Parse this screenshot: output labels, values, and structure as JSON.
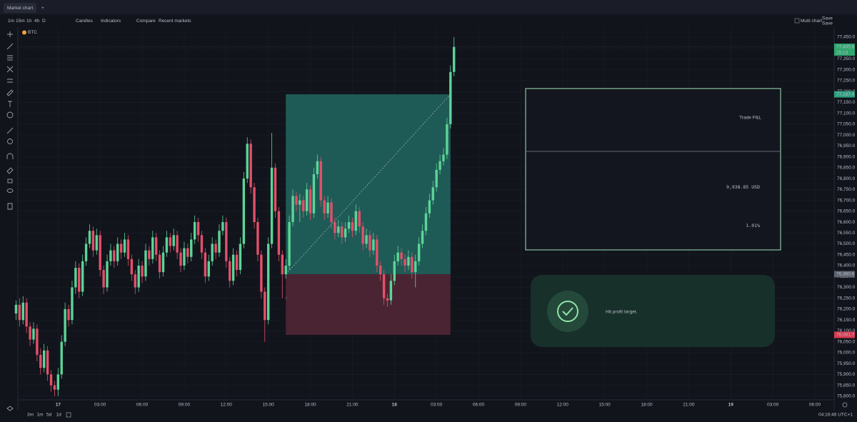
{
  "toolbar": {
    "tab": "Market chart",
    "intervals": [
      "1m",
      "15m",
      "1h",
      "4h",
      "D"
    ],
    "chart_style": "Candles",
    "indicators": "Indicators",
    "compare": "Compare",
    "recent": "Recent markets",
    "multi_chart": "Multi chart",
    "save_top": "Save",
    "save_bottom": "Save",
    "symbol": "BTC"
  },
  "chart_data": {
    "type": "candlestick",
    "grid": true,
    "up_color": "#5cd497",
    "down_color": "#e2506a",
    "xlim": [
      -0.5,
      233.5
    ],
    "ylim": [
      75783,
      77496
    ],
    "xticks": [
      {
        "value": 12,
        "label": "17"
      },
      {
        "value": 24,
        "label": "03:00"
      },
      {
        "value": 36,
        "label": "06:00"
      },
      {
        "value": 48,
        "label": "09:00"
      },
      {
        "value": 60,
        "label": "12:00"
      },
      {
        "value": 72,
        "label": "15:00"
      },
      {
        "value": 84,
        "label": "18:00"
      },
      {
        "value": 96,
        "label": "21:00"
      },
      {
        "value": 108,
        "label": "18"
      },
      {
        "value": 120,
        "label": "03:00"
      },
      {
        "value": 132,
        "label": "06:00"
      },
      {
        "value": 144,
        "label": "09:00"
      },
      {
        "value": 156,
        "label": "12:00"
      },
      {
        "value": 168,
        "label": "15:00"
      },
      {
        "value": 180,
        "label": "18:00"
      },
      {
        "value": 192,
        "label": "21:00"
      },
      {
        "value": 204,
        "label": "19"
      },
      {
        "value": 216,
        "label": "03:00"
      },
      {
        "value": 228,
        "label": "06:00"
      }
    ],
    "yticks": [
      {
        "value": 75800,
        "label": "75,800.0"
      },
      {
        "value": 75850,
        "label": "75,850.0"
      },
      {
        "value": 75900,
        "label": "75,900.0"
      },
      {
        "value": 75950,
        "label": "75,950.0"
      },
      {
        "value": 76000,
        "label": "76,000.0"
      },
      {
        "value": 76050,
        "label": "76,050.0"
      },
      {
        "value": 76100,
        "label": "76,100.0"
      },
      {
        "value": 76150,
        "label": "76,150.0"
      },
      {
        "value": 76200,
        "label": "76,200.0"
      },
      {
        "value": 76250,
        "label": "76,250.0"
      },
      {
        "value": 76300,
        "label": "76,300.0"
      },
      {
        "value": 76350,
        "label": "76,350.0"
      },
      {
        "value": 76400,
        "label": "76,400.0"
      },
      {
        "value": 76450,
        "label": "76,450.0"
      },
      {
        "value": 76500,
        "label": "76,500.0"
      },
      {
        "value": 76550,
        "label": "76,550.0"
      },
      {
        "value": 76600,
        "label": "76,600.0"
      },
      {
        "value": 76650,
        "label": "76,650.0"
      },
      {
        "value": 76700,
        "label": "76,700.0"
      },
      {
        "value": 76750,
        "label": "76,750.0"
      },
      {
        "value": 76800,
        "label": "76,800.0"
      },
      {
        "value": 76850,
        "label": "76,850.0"
      },
      {
        "value": 76900,
        "label": "76,900.0"
      },
      {
        "value": 76950,
        "label": "76,950.0"
      },
      {
        "value": 77000,
        "label": "77,000.0"
      },
      {
        "value": 77050,
        "label": "77,050.0"
      },
      {
        "value": 77100,
        "label": "77,100.0"
      },
      {
        "value": 77150,
        "label": "77,150.0"
      },
      {
        "value": 77200,
        "label": "77,200.0"
      },
      {
        "value": 77250,
        "label": "77,250.0"
      },
      {
        "value": 77300,
        "label": "77,300.0"
      },
      {
        "value": 77350,
        "label": "77,350.0"
      },
      {
        "value": 77400,
        "label": "77,400.0"
      },
      {
        "value": 77450,
        "label": "77,450.0"
      }
    ],
    "candles": [
      [
        76180,
        76240,
        76150,
        76220
      ],
      [
        76220,
        76250,
        76120,
        76150
      ],
      [
        76150,
        76260,
        76130,
        76230
      ],
      [
        76230,
        76250,
        76090,
        76120
      ],
      [
        76120,
        76140,
        76030,
        76060
      ],
      [
        76060,
        76140,
        76040,
        76110
      ],
      [
        76110,
        76130,
        75960,
        75990
      ],
      [
        75990,
        76020,
        75900,
        75930
      ],
      [
        75930,
        76040,
        75910,
        76010
      ],
      [
        76010,
        76030,
        75870,
        75900
      ],
      [
        75900,
        75920,
        75820,
        75850
      ],
      [
        75850,
        75870,
        75800,
        75830
      ],
      [
        75830,
        75930,
        75800,
        75900
      ],
      [
        75900,
        76080,
        75880,
        76050
      ],
      [
        76050,
        76230,
        76030,
        76200
      ],
      [
        76200,
        76220,
        76120,
        76150
      ],
      [
        76150,
        76330,
        76130,
        76300
      ],
      [
        76300,
        76420,
        76270,
        76390
      ],
      [
        76390,
        76410,
        76250,
        76280
      ],
      [
        76280,
        76450,
        76260,
        76420
      ],
      [
        76420,
        76530,
        76400,
        76500
      ],
      [
        76500,
        76590,
        76480,
        76560
      ],
      [
        76560,
        76580,
        76440,
        76470
      ],
      [
        76470,
        76570,
        76450,
        76540
      ],
      [
        76540,
        76560,
        76350,
        76380
      ],
      [
        76380,
        76400,
        76270,
        76300
      ],
      [
        76300,
        76450,
        76280,
        76420
      ],
      [
        76420,
        76500,
        76400,
        76470
      ],
      [
        76470,
        76490,
        76390,
        76420
      ],
      [
        76420,
        76530,
        76400,
        76500
      ],
      [
        76500,
        76520,
        76430,
        76460
      ],
      [
        76460,
        76550,
        76440,
        76520
      ],
      [
        76520,
        76540,
        76400,
        76430
      ],
      [
        76430,
        76450,
        76330,
        76360
      ],
      [
        76360,
        76380,
        76270,
        76300
      ],
      [
        76300,
        76430,
        76280,
        76400
      ],
      [
        76400,
        76420,
        76320,
        76350
      ],
      [
        76350,
        76500,
        76330,
        76470
      ],
      [
        76470,
        76490,
        76400,
        76430
      ],
      [
        76430,
        76560,
        76410,
        76530
      ],
      [
        76530,
        76550,
        76420,
        76450
      ],
      [
        76450,
        76470,
        76340,
        76370
      ],
      [
        76370,
        76490,
        76350,
        76460
      ],
      [
        76460,
        76560,
        76440,
        76530
      ],
      [
        76530,
        76550,
        76460,
        76490
      ],
      [
        76490,
        76570,
        76470,
        76540
      ],
      [
        76540,
        76560,
        76430,
        76460
      ],
      [
        76460,
        76480,
        76370,
        76400
      ],
      [
        76400,
        76510,
        76380,
        76480
      ],
      [
        76480,
        76500,
        76410,
        76440
      ],
      [
        76440,
        76550,
        76420,
        76520
      ],
      [
        76520,
        76630,
        76500,
        76600
      ],
      [
        76600,
        76620,
        76510,
        76540
      ],
      [
        76540,
        76560,
        76430,
        76460
      ],
      [
        76460,
        76480,
        76320,
        76350
      ],
      [
        76350,
        76450,
        76330,
        76420
      ],
      [
        76420,
        76530,
        76400,
        76500
      ],
      [
        76500,
        76520,
        76430,
        76460
      ],
      [
        76460,
        76590,
        76440,
        76560
      ],
      [
        76560,
        76630,
        76540,
        76600
      ],
      [
        76600,
        76620,
        76390,
        76420
      ],
      [
        76420,
        76440,
        76300,
        76330
      ],
      [
        76330,
        76480,
        76310,
        76450
      ],
      [
        76450,
        76470,
        76350,
        76380
      ],
      [
        76380,
        76530,
        76360,
        76500
      ],
      [
        76500,
        76830,
        76480,
        76800
      ],
      [
        76800,
        76990,
        76780,
        76960
      ],
      [
        76960,
        76980,
        76730,
        76760
      ],
      [
        76760,
        76780,
        76570,
        76600
      ],
      [
        76600,
        76620,
        76420,
        76450
      ],
      [
        76450,
        76470,
        76250,
        76280
      ],
      [
        76280,
        76300,
        76050,
        76150
      ],
      [
        76150,
        76530,
        76130,
        76500
      ],
      [
        76500,
        77010,
        76480,
        76850
      ],
      [
        76850,
        76870,
        76620,
        76650
      ],
      [
        76650,
        76670,
        76420,
        76450
      ],
      [
        76450,
        76470,
        76250,
        76360
      ],
      [
        76360,
        76430,
        76340,
        76400
      ],
      [
        76400,
        76630,
        76380,
        76600
      ],
      [
        76600,
        76750,
        76580,
        76720
      ],
      [
        76720,
        76740,
        76650,
        76680
      ],
      [
        76680,
        76730,
        76600,
        76700
      ],
      [
        76700,
        76720,
        76620,
        76650
      ],
      [
        76650,
        76780,
        76630,
        76750
      ],
      [
        76750,
        76770,
        76610,
        76640
      ],
      [
        76640,
        76850,
        76620,
        76820
      ],
      [
        76820,
        76910,
        76800,
        76880
      ],
      [
        76880,
        76900,
        76670,
        76700
      ],
      [
        76700,
        76720,
        76610,
        76640
      ],
      [
        76640,
        76720,
        76620,
        76690
      ],
      [
        76690,
        76710,
        76570,
        76600
      ],
      [
        76600,
        76620,
        76520,
        76550
      ],
      [
        76550,
        76610,
        76530,
        76580
      ],
      [
        76580,
        76600,
        76500,
        76530
      ],
      [
        76530,
        76600,
        76510,
        76570
      ],
      [
        76570,
        76630,
        76550,
        76600
      ],
      [
        76600,
        76620,
        76530,
        76560
      ],
      [
        76560,
        76680,
        76540,
        76650
      ],
      [
        76650,
        76670,
        76550,
        76580
      ],
      [
        76580,
        76600,
        76470,
        76500
      ],
      [
        76500,
        76570,
        76480,
        76540
      ],
      [
        76540,
        76560,
        76440,
        76470
      ],
      [
        76470,
        76550,
        76450,
        76520
      ],
      [
        76520,
        76540,
        76370,
        76400
      ],
      [
        76400,
        76420,
        76330,
        76360
      ],
      [
        76360,
        76380,
        76220,
        76250
      ],
      [
        76250,
        76270,
        76210,
        76240
      ],
      [
        76240,
        76360,
        76220,
        76330
      ],
      [
        76330,
        76450,
        76310,
        76420
      ],
      [
        76420,
        76490,
        76400,
        76460
      ],
      [
        76460,
        76480,
        76400,
        76430
      ],
      [
        76430,
        76450,
        76370,
        76400
      ],
      [
        76400,
        76470,
        76380,
        76440
      ],
      [
        76440,
        76460,
        76340,
        76370
      ],
      [
        76370,
        76450,
        76300,
        76420
      ],
      [
        76420,
        76530,
        76400,
        76500
      ],
      [
        76500,
        76590,
        76480,
        76560
      ],
      [
        76560,
        76670,
        76540,
        76640
      ],
      [
        76640,
        76730,
        76620,
        76700
      ],
      [
        76700,
        76790,
        76680,
        76760
      ],
      [
        76760,
        76870,
        76740,
        76840
      ],
      [
        76840,
        76910,
        76820,
        76880
      ],
      [
        76880,
        76940,
        76860,
        76910
      ],
      [
        76910,
        77080,
        76890,
        77050
      ],
      [
        77050,
        77320,
        77030,
        77290
      ],
      [
        77290,
        77450,
        77270,
        77405
      ]
    ],
    "position": {
      "start": 77,
      "end": 124,
      "entry": {
        "value": 76360.6,
        "label": "76,360.6"
      },
      "target": {
        "value": 77187.4,
        "label": "77,187.4"
      },
      "stop": {
        "value": 76081.7,
        "label": "76,081.7"
      }
    },
    "last_price": {
      "value": 77405.6,
      "label": "77,405.6"
    },
    "countdown": "15:13"
  },
  "pnl_panel": {
    "title": "Trade P&L",
    "amount": "9,938.85 USD",
    "percent": "1.01%"
  },
  "toast": {
    "message": "Hit profit target."
  },
  "footer": {
    "ranges": [
      "3m",
      "1m",
      "5d",
      "1d"
    ],
    "clock": "04:16:46 UTC+1"
  }
}
